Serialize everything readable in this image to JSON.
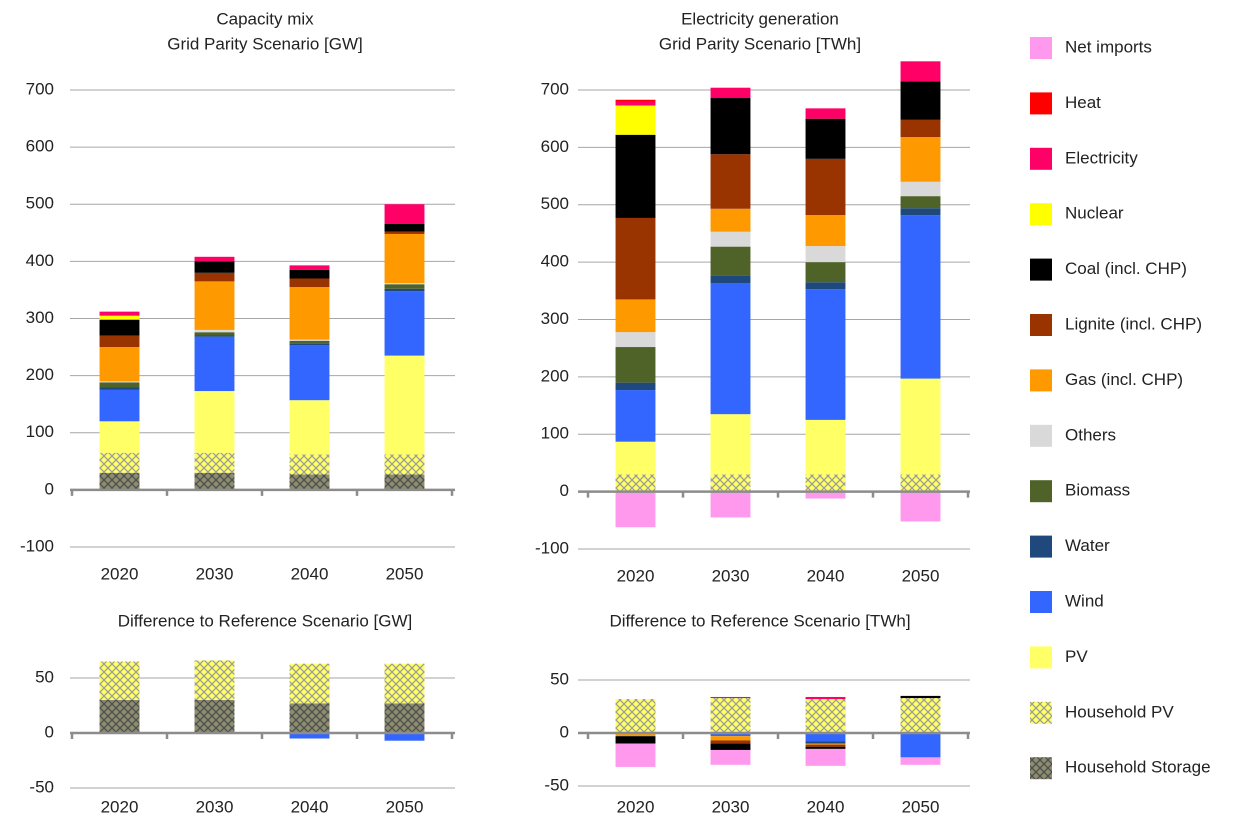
{
  "chart_data": [
    {
      "type": "bar",
      "stacked": true,
      "title": [
        "Capacity mix",
        "Grid Parity Scenario [GW]"
      ],
      "categories": [
        "2020",
        "2030",
        "2040",
        "2050"
      ],
      "ylim": [
        -100,
        700
      ],
      "yticks": [
        -100,
        0,
        100,
        200,
        300,
        400,
        500,
        600,
        700
      ],
      "grid": true,
      "series": [
        {
          "name": "Net imports",
          "color": "#ff99ee",
          "values": [
            0,
            0,
            0,
            0
          ]
        },
        {
          "name": "Heat",
          "color": "#ff0000",
          "values": [
            0,
            0,
            0,
            0
          ]
        },
        {
          "name": "Electricity",
          "color": "#ff0066",
          "values": [
            7,
            8,
            8,
            34
          ]
        },
        {
          "name": "Nuclear",
          "color": "#ffff00",
          "values": [
            7,
            0,
            0,
            0
          ]
        },
        {
          "name": "Coal (incl. CHP)",
          "color": "#000000",
          "values": [
            28,
            20,
            15,
            14
          ]
        },
        {
          "name": "Lignite (incl. CHP)",
          "color": "#993300",
          "values": [
            20,
            15,
            15,
            4
          ]
        },
        {
          "name": "Gas (incl. CHP)",
          "color": "#ff9900",
          "values": [
            60,
            85,
            92,
            86
          ]
        },
        {
          "name": "Others",
          "color": "#d9d9d9",
          "values": [
            2,
            4,
            2,
            2
          ]
        },
        {
          "name": "Biomass",
          "color": "#4f6228",
          "values": [
            8,
            5,
            5,
            8
          ]
        },
        {
          "name": "Water",
          "color": "#1f497d",
          "values": [
            5,
            3,
            3,
            4
          ]
        },
        {
          "name": "Wind",
          "color": "#3366ff",
          "values": [
            55,
            95,
            96,
            113
          ]
        },
        {
          "name": "PV",
          "color": "#ffff66",
          "values": [
            55,
            108,
            95,
            173
          ]
        },
        {
          "name": "Household PV",
          "color": "#ffff66",
          "hatch": "#9a9a9a",
          "values": [
            35,
            35,
            35,
            35
          ]
        },
        {
          "name": "Household Storage",
          "color": "#8c8c6e",
          "hatch": "#4d4d4d",
          "values": [
            30,
            30,
            27,
            27
          ]
        }
      ]
    },
    {
      "type": "bar",
      "stacked": true,
      "title": [
        "Electricity generation",
        "Grid Parity Scenario [TWh]"
      ],
      "categories": [
        "2020",
        "2030",
        "2040",
        "2050"
      ],
      "ylim": [
        -100,
        750
      ],
      "yticks": [
        -100,
        0,
        100,
        200,
        300,
        400,
        500,
        600,
        700
      ],
      "grid": true,
      "series": [
        {
          "name": "Net imports",
          "color": "#ff99ee",
          "values": [
            -62,
            -45,
            -12,
            -52
          ]
        },
        {
          "name": "Heat",
          "color": "#ff0000",
          "values": [
            3,
            0,
            0,
            0
          ]
        },
        {
          "name": "Electricity",
          "color": "#ff0066",
          "values": [
            7,
            18,
            18,
            35
          ]
        },
        {
          "name": "Nuclear",
          "color": "#ffff00",
          "values": [
            51,
            0,
            0,
            0
          ]
        },
        {
          "name": "Coal (incl. CHP)",
          "color": "#000000",
          "values": [
            145,
            98,
            70,
            67
          ]
        },
        {
          "name": "Lignite (incl. CHP)",
          "color": "#993300",
          "values": [
            142,
            95,
            98,
            30
          ]
        },
        {
          "name": "Gas (incl. CHP)",
          "color": "#ff9900",
          "values": [
            57,
            40,
            54,
            78
          ]
        },
        {
          "name": "Others",
          "color": "#d9d9d9",
          "values": [
            26,
            26,
            28,
            25
          ]
        },
        {
          "name": "Biomass",
          "color": "#4f6228",
          "values": [
            62,
            50,
            35,
            21
          ]
        },
        {
          "name": "Water",
          "color": "#1f497d",
          "values": [
            13,
            14,
            12,
            12
          ]
        },
        {
          "name": "Wind",
          "color": "#3366ff",
          "values": [
            90,
            228,
            228,
            285
          ]
        },
        {
          "name": "PV",
          "color": "#ffff66",
          "values": [
            57,
            105,
            95,
            167
          ]
        },
        {
          "name": "Household PV",
          "color": "#ffff66",
          "hatch": "#9a9a9a",
          "values": [
            30,
            30,
            30,
            30
          ]
        },
        {
          "name": "Household Storage",
          "color": "#8c8c6e",
          "hatch": "#4d4d4d",
          "values": [
            0,
            0,
            0,
            0
          ]
        }
      ]
    },
    {
      "type": "bar",
      "stacked": true,
      "title": [
        "Difference to Reference Scenario [GW]"
      ],
      "categories": [
        "2020",
        "2030",
        "2040",
        "2050"
      ],
      "ylim": [
        -50,
        75
      ],
      "yticks": [
        -50,
        0,
        50
      ],
      "grid": true,
      "series": [
        {
          "name": "Net imports",
          "color": "#ff99ee",
          "values": [
            0,
            0,
            0,
            0
          ]
        },
        {
          "name": "Heat",
          "color": "#ff0000",
          "values": [
            0,
            0,
            0,
            0
          ]
        },
        {
          "name": "Electricity",
          "color": "#ff0066",
          "values": [
            0,
            0,
            0,
            0
          ]
        },
        {
          "name": "Nuclear",
          "color": "#ffff00",
          "values": [
            0,
            0,
            0,
            0
          ]
        },
        {
          "name": "Coal (incl. CHP)",
          "color": "#000000",
          "values": [
            0,
            0,
            0,
            0
          ]
        },
        {
          "name": "Lignite (incl. CHP)",
          "color": "#993300",
          "values": [
            0,
            0,
            0,
            0
          ]
        },
        {
          "name": "Gas (incl. CHP)",
          "color": "#ff9900",
          "values": [
            0,
            0,
            0,
            0
          ]
        },
        {
          "name": "Others",
          "color": "#d9d9d9",
          "values": [
            0,
            0,
            0,
            0
          ]
        },
        {
          "name": "Biomass",
          "color": "#4f6228",
          "values": [
            0,
            0,
            0,
            0
          ]
        },
        {
          "name": "Water",
          "color": "#1f497d",
          "values": [
            0,
            0,
            0,
            0
          ]
        },
        {
          "name": "Wind",
          "color": "#3366ff",
          "values": [
            0,
            0,
            -5,
            -7
          ]
        },
        {
          "name": "PV",
          "color": "#ffff66",
          "values": [
            0,
            0,
            0,
            0
          ]
        },
        {
          "name": "Household PV",
          "color": "#ffff66",
          "hatch": "#9a9a9a",
          "values": [
            35,
            36,
            36,
            36
          ]
        },
        {
          "name": "Household Storage",
          "color": "#8c8c6e",
          "hatch": "#4d4d4d",
          "values": [
            30,
            30,
            27,
            27
          ]
        }
      ]
    },
    {
      "type": "bar",
      "stacked": true,
      "title": [
        "Difference to Reference Scenario [TWh]"
      ],
      "categories": [
        "2020",
        "2030",
        "2040",
        "2050"
      ],
      "ylim": [
        -50,
        75
      ],
      "yticks": [
        -50,
        0,
        50
      ],
      "grid": true,
      "series": [
        {
          "name": "Net imports",
          "color": "#ff99ee",
          "values": [
            -22,
            -14,
            -16,
            -7
          ]
        },
        {
          "name": "Heat",
          "color": "#ff0000",
          "values": [
            0,
            0,
            0,
            0
          ]
        },
        {
          "name": "Electricity",
          "color": "#ff0066",
          "values": [
            0,
            1,
            2,
            0
          ]
        },
        {
          "name": "Nuclear",
          "color": "#ffff00",
          "values": [
            0,
            0,
            0,
            0
          ]
        },
        {
          "name": "Coal (incl. CHP)",
          "color": "#000000",
          "values": [
            -7,
            -6,
            -2,
            2
          ]
        },
        {
          "name": "Lignite (incl. CHP)",
          "color": "#993300",
          "values": [
            0,
            -3,
            -2,
            0
          ]
        },
        {
          "name": "Gas (incl. CHP)",
          "color": "#ff9900",
          "values": [
            -3,
            -4,
            -1,
            0
          ]
        },
        {
          "name": "Others",
          "color": "#d9d9d9",
          "values": [
            0,
            0,
            0,
            0
          ]
        },
        {
          "name": "Biomass",
          "color": "#4f6228",
          "values": [
            0,
            0,
            0,
            0
          ]
        },
        {
          "name": "Water",
          "color": "#1f497d",
          "values": [
            0,
            0,
            -2,
            0
          ]
        },
        {
          "name": "Wind",
          "color": "#3366ff",
          "values": [
            0,
            -3,
            -8,
            -23
          ]
        },
        {
          "name": "PV",
          "color": "#ffff66",
          "values": [
            0,
            0,
            0,
            0
          ]
        },
        {
          "name": "Household PV",
          "color": "#ffff66",
          "hatch": "#9a9a9a",
          "values": [
            32,
            33,
            32,
            33
          ]
        },
        {
          "name": "Household Storage",
          "color": "#8c8c6e",
          "hatch": "#4d4d4d",
          "values": [
            0,
            0,
            0,
            0
          ]
        }
      ]
    }
  ]
}
